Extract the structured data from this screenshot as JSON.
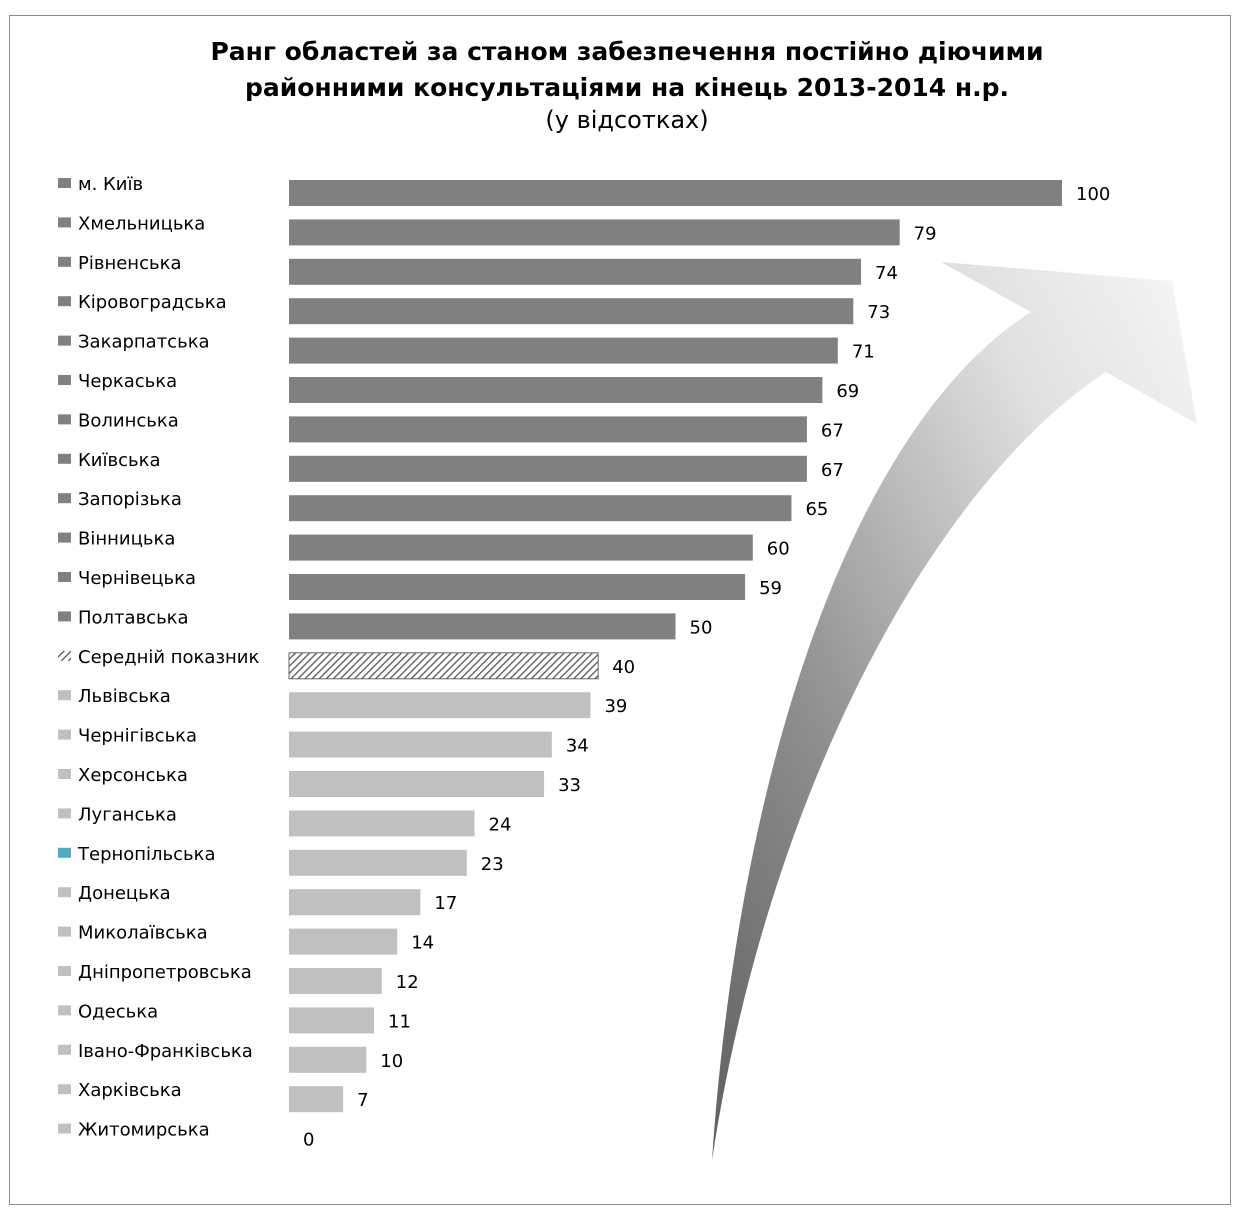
{
  "chart_data": {
    "type": "bar",
    "orientation": "horizontal",
    "title": "Ранг областей за станом забезпечення постійно діючими районними консультаціями на кінець 2013-2014 н.р.",
    "title_lines": [
      "Ранг областей за станом забезпечення постійно діючими",
      "районними консультаціями на кінець 2013-2014 н.р."
    ],
    "subtitle": "(у відсотках)",
    "xlim": [
      0,
      100
    ],
    "grid": false,
    "legend": "left",
    "colors": {
      "above_average": "#808080",
      "below_average": "#c0c0c0",
      "average": "#7f7f7f",
      "highlight": "#4bacc6",
      "arrow": "#7f7f7f"
    },
    "categories": [
      "м. Київ",
      "Хмельницька",
      "Рівненська",
      "Кіровоградська",
      "Закарпатська",
      "Черкаська",
      "Волинська",
      "Київська",
      "Запорізька",
      "Вінницька",
      "Чернівецька",
      "Полтавська",
      "Середній показник",
      "Львівська",
      "Чернігівська",
      "Херсонська",
      "Луганська",
      "Тернопільська",
      "Донецька",
      "Миколаївська",
      "Дніпропетровська",
      "Одеська",
      "Івано-Франківська",
      "Харківська",
      "Житомирська"
    ],
    "values": [
      100,
      79,
      74,
      73,
      71,
      69,
      67,
      67,
      65,
      60,
      59,
      50,
      40,
      39,
      34,
      33,
      24,
      23,
      17,
      14,
      12,
      11,
      10,
      7,
      0
    ],
    "groups": [
      "above",
      "above",
      "above",
      "above",
      "above",
      "above",
      "above",
      "above",
      "above",
      "above",
      "above",
      "above",
      "average",
      "below",
      "below",
      "below",
      "below",
      "highlight",
      "below",
      "below",
      "below",
      "below",
      "below",
      "below",
      "below"
    ]
  }
}
